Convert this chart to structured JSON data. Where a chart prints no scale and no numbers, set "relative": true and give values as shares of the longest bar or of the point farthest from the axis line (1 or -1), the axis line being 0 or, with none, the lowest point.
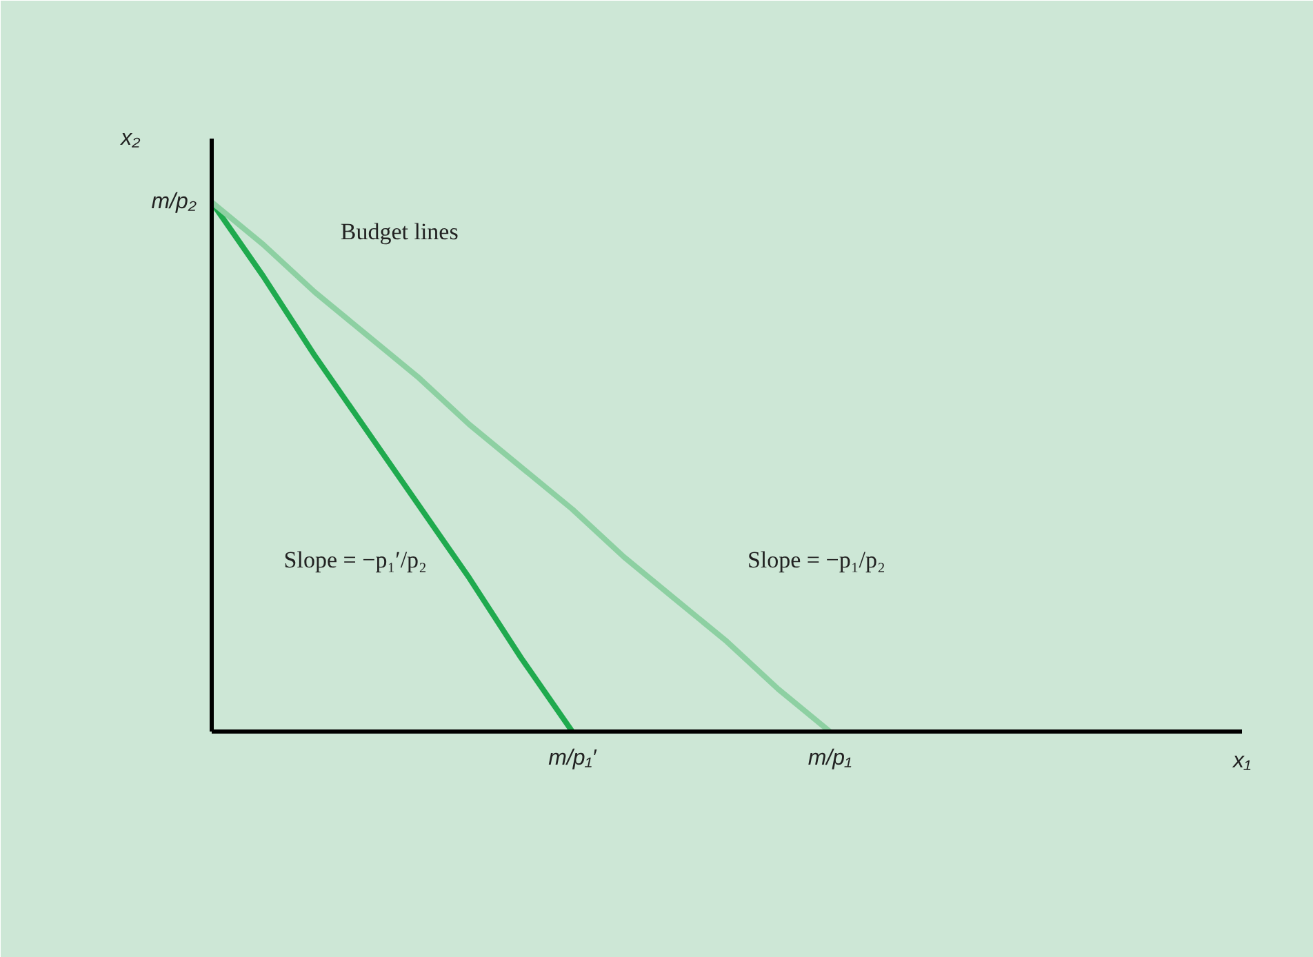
{
  "chart_data": {
    "type": "line",
    "xlabel": "x₁",
    "ylabel": "x₂",
    "relative": true,
    "categories": [
      null,
      null,
      null,
      null,
      null,
      null,
      null,
      "m/p₁′",
      null,
      null,
      null,
      null,
      "m/p₁",
      null,
      null,
      null,
      null,
      null,
      null,
      null,
      null
    ],
    "series": [
      {
        "color": "#1faa4e",
        "values": [
          1,
          0.86,
          0.71,
          0.57,
          0.43,
          0.29,
          0.14,
          0,
          null,
          null,
          null,
          null,
          null,
          null,
          null,
          null,
          null,
          null,
          null,
          null,
          null
        ]
      },
      {
        "color": "#8dd0a2",
        "values": [
          1,
          0.92,
          0.83,
          0.75,
          0.67,
          0.58,
          0.5,
          0.42,
          0.33,
          0.25,
          0.17,
          0.08,
          0,
          null,
          null,
          null,
          null,
          null,
          null,
          null,
          null
        ]
      }
    ],
    "annotations": [
      "m/p₂",
      "Budget lines",
      "Slope = −p₁′/p₂",
      "Slope = −p₁/p₂"
    ]
  }
}
